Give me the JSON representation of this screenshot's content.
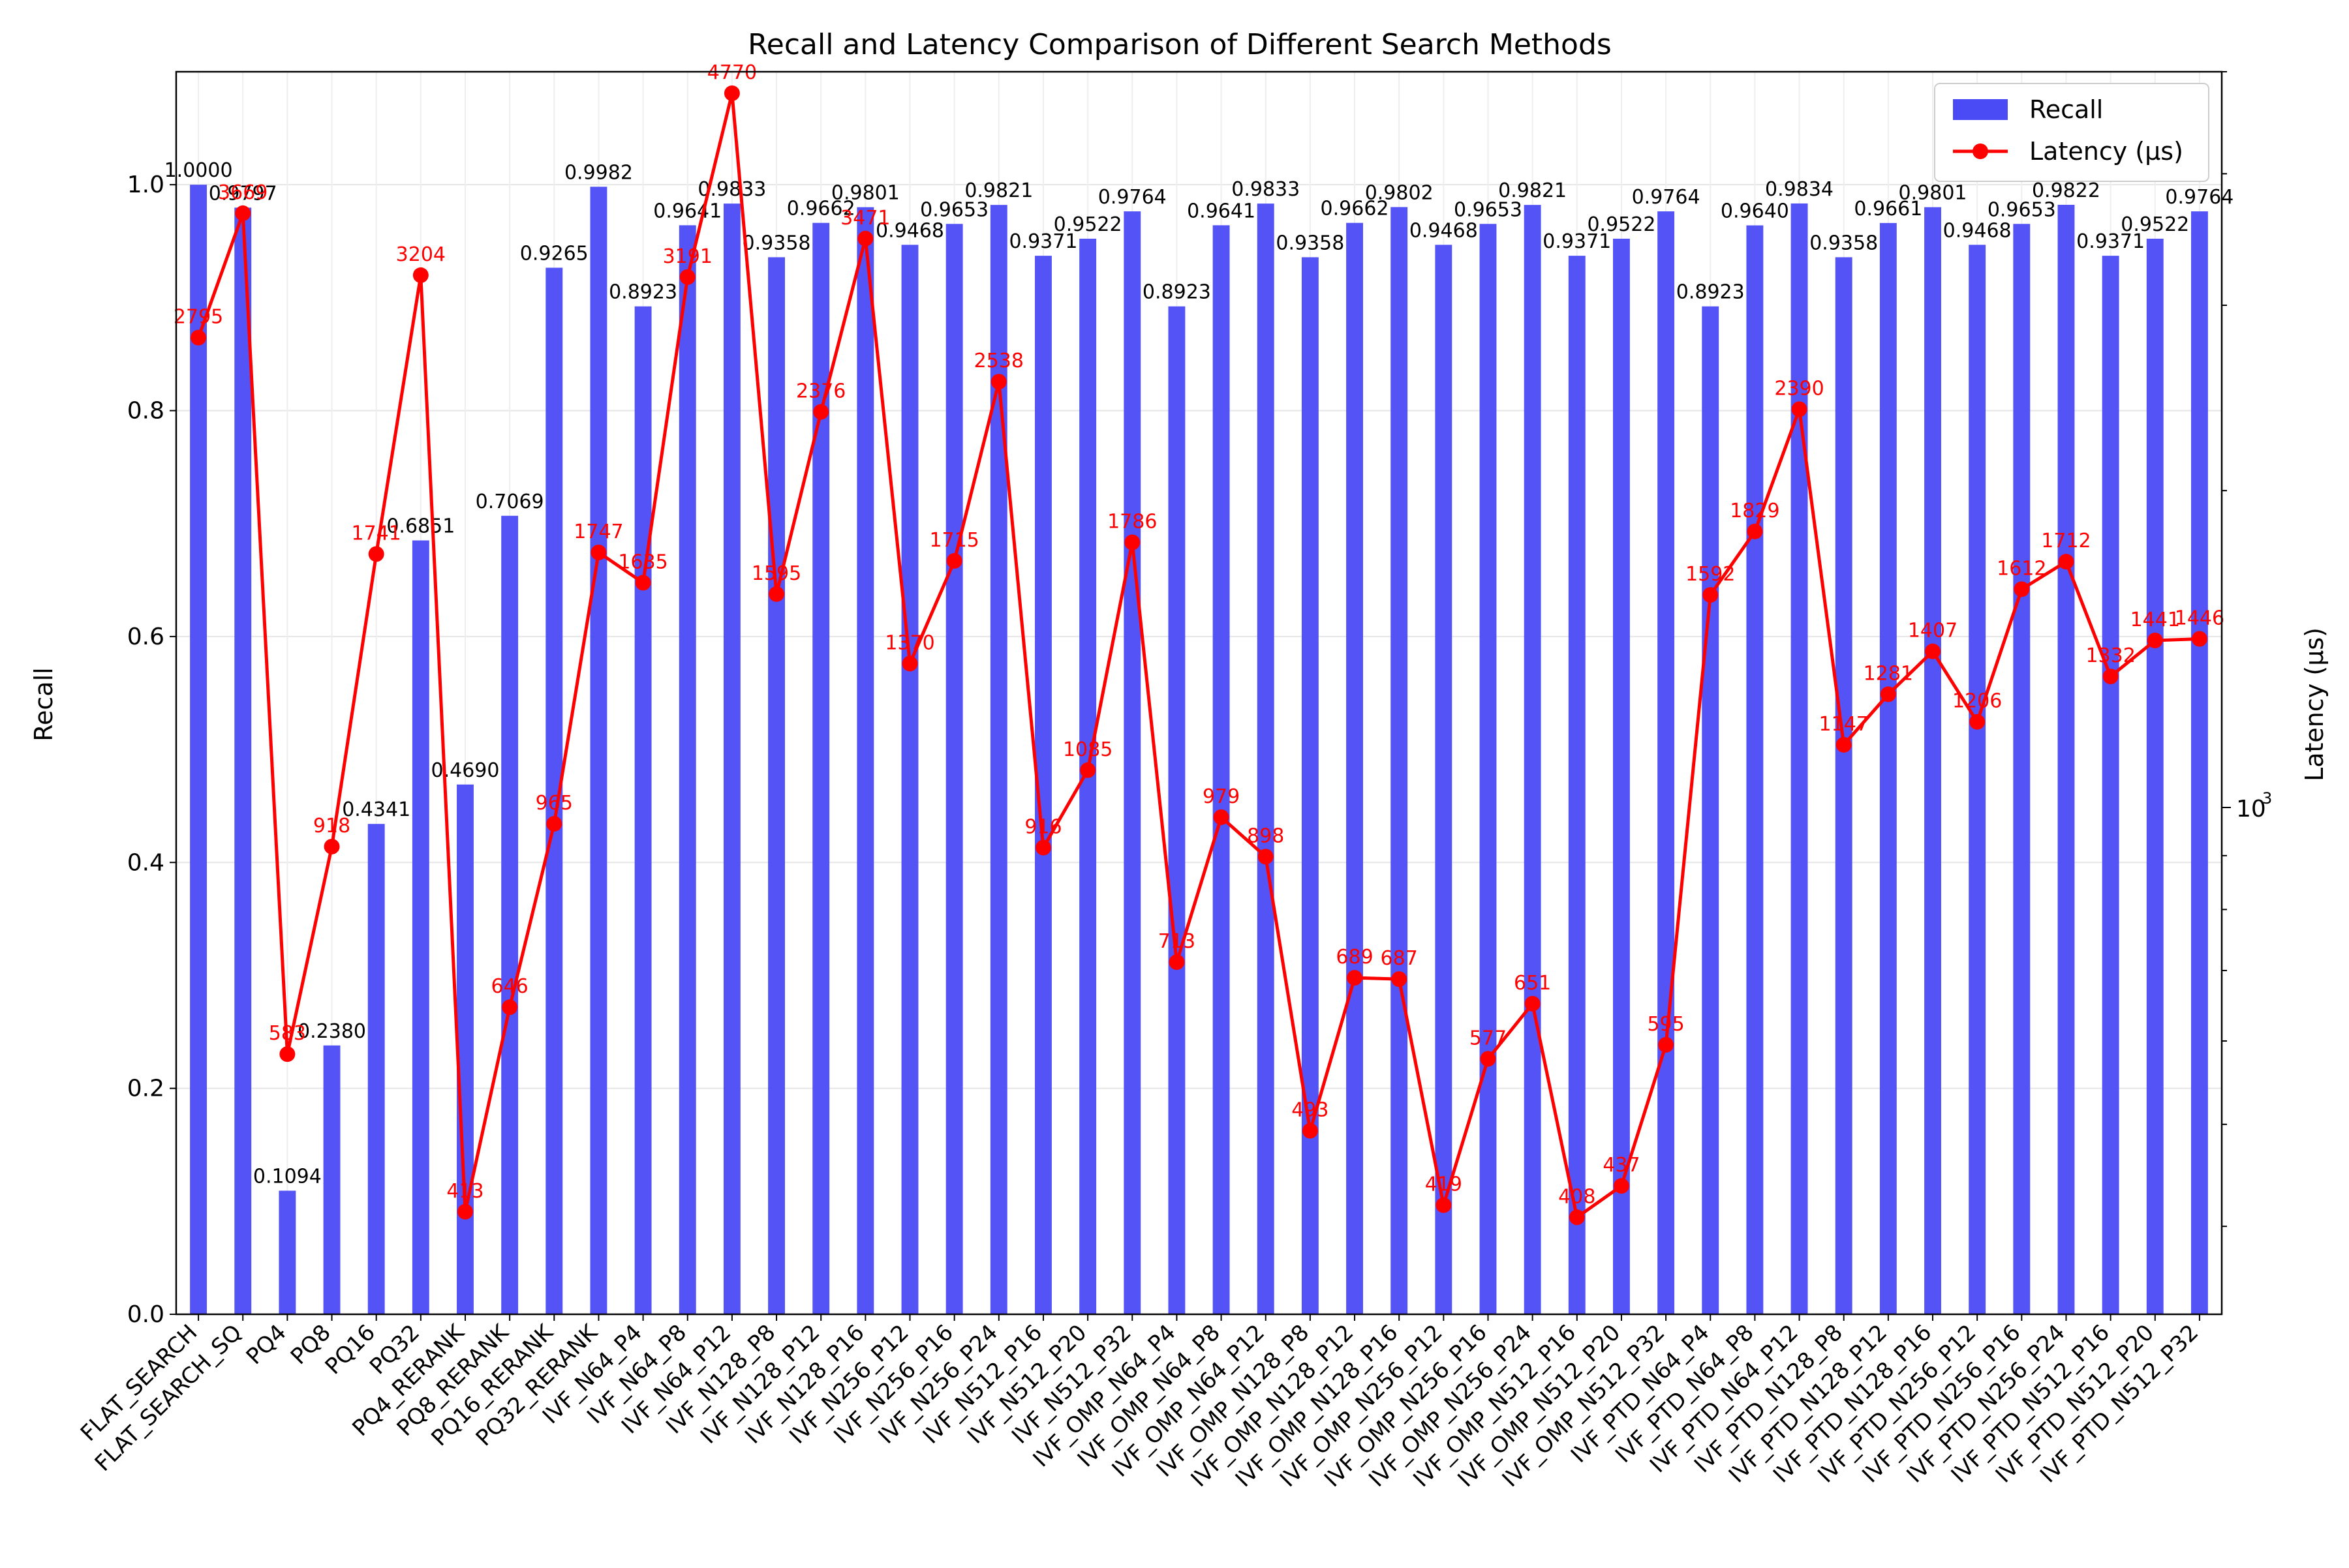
{
  "chart_data": {
    "type": "bar",
    "title": "Recall and Latency Comparison of Different Search Methods",
    "xlabel": "",
    "ylabel": "Recall",
    "y2label": "Latency (μs)",
    "ylim": [
      0,
      1.1
    ],
    "y2scale": "log",
    "y2_tick_labels": [
      "10",
      "3"
    ],
    "y_ticks": [
      "0.0",
      "0.2",
      "0.4",
      "0.6",
      "0.8",
      "1.0"
    ],
    "grid": true,
    "legend_position": "top-right",
    "categories": [
      "FLAT_SEARCH",
      "FLAT_SEARCH_SQ",
      "PQ4",
      "PQ8",
      "PQ16",
      "PQ32",
      "PQ4_RERANK",
      "PQ8_RERANK",
      "PQ16_RERANK",
      "PQ32_RERANK",
      "IVF_N64_P4",
      "IVF_N64_P8",
      "IVF_N64_P12",
      "IVF_N128_P8",
      "IVF_N128_P12",
      "IVF_N128_P16",
      "IVF_N256_P12",
      "IVF_N256_P16",
      "IVF_N256_P24",
      "IVF_N512_P16",
      "IVF_N512_P20",
      "IVF_N512_P32",
      "IVF_OMP_N64_P4",
      "IVF_OMP_N64_P8",
      "IVF_OMP_N64_P12",
      "IVF_OMP_N128_P8",
      "IVF_OMP_N128_P12",
      "IVF_OMP_N128_P16",
      "IVF_OMP_N256_P12",
      "IVF_OMP_N256_P16",
      "IVF_OMP_N256_P24",
      "IVF_OMP_N512_P16",
      "IVF_OMP_N512_P20",
      "IVF_OMP_N512_P32",
      "IVF_PTD_N64_P4",
      "IVF_PTD_N64_P8",
      "IVF_PTD_N64_P12",
      "IVF_PTD_N128_P8",
      "IVF_PTD_N128_P12",
      "IVF_PTD_N128_P16",
      "IVF_PTD_N256_P12",
      "IVF_PTD_N256_P16",
      "IVF_PTD_N256_P24",
      "IVF_PTD_N512_P16",
      "IVF_PTD_N512_P20",
      "IVF_PTD_N512_P32"
    ],
    "series": [
      {
        "name": "Recall",
        "type": "bar",
        "color": "#4b4bf5",
        "values": [
          1.0,
          0.9797,
          0.1094,
          0.238,
          0.4341,
          0.6851,
          0.469,
          0.7069,
          0.9265,
          0.9982,
          0.8923,
          0.9641,
          0.9833,
          0.9358,
          0.9662,
          0.9801,
          0.9468,
          0.9653,
          0.9821,
          0.9371,
          0.9522,
          0.9764,
          0.8923,
          0.9641,
          0.9833,
          0.9358,
          0.9662,
          0.9802,
          0.9468,
          0.9653,
          0.9821,
          0.9371,
          0.9522,
          0.9764,
          0.8923,
          0.964,
          0.9834,
          0.9358,
          0.9661,
          0.9801,
          0.9468,
          0.9653,
          0.9822,
          0.9371,
          0.9522,
          0.9764
        ],
        "labels": [
          "1.0000",
          "0.9797",
          "0.1094",
          "0.2380",
          "0.4341",
          "0.6851",
          "0.4690",
          "0.7069",
          "0.9265",
          "0.9982",
          "0.8923",
          "0.9641",
          "0.9833",
          "0.9358",
          "0.9662",
          "0.9801",
          "0.9468",
          "0.9653",
          "0.9821",
          "0.9371",
          "0.9522",
          "0.9764",
          "0.8923",
          "0.9641",
          "0.9833",
          "0.9358",
          "0.9662",
          "0.9802",
          "0.9468",
          "0.9653",
          "0.9821",
          "0.9371",
          "0.9522",
          "0.9764",
          "0.8923",
          "0.9640",
          "0.9834",
          "0.9358",
          "0.9661",
          "0.9801",
          "0.9468",
          "0.9653",
          "0.9822",
          "0.9371",
          "0.9522",
          "0.9764"
        ]
      },
      {
        "name": "Latency (μs)",
        "type": "line",
        "color": "#ff0000",
        "axis": "right",
        "values": [
          2795,
          3669,
          583,
          918,
          1741,
          3204,
          413,
          646,
          965,
          1747,
          1635,
          3191,
          4770,
          1595,
          2376,
          3471,
          1370,
          1715,
          2538,
          916,
          1085,
          1786,
          713,
          979,
          898,
          493,
          689,
          687,
          419,
          577,
          651,
          408,
          437,
          595,
          1592,
          1829,
          2390,
          1147,
          1281,
          1407,
          1206,
          1612,
          1712,
          1332,
          1441,
          1446
        ],
        "labels": [
          "2795",
          "3669",
          "583",
          "918",
          "1741",
          "3204",
          "413",
          "646",
          "965",
          "1747",
          "1635",
          "3191",
          "4770",
          "1595",
          "2376",
          "3471",
          "1370",
          "1715",
          "2538",
          "916",
          "1085",
          "1786",
          "713",
          "979",
          "898",
          "493",
          "689",
          "687",
          "419",
          "577",
          "651",
          "408",
          "437",
          "595",
          "1592",
          "1829",
          "2390",
          "1147",
          "1281",
          "1407",
          "1206",
          "1612",
          "1712",
          "1332",
          "1441",
          "1446"
        ]
      }
    ]
  }
}
